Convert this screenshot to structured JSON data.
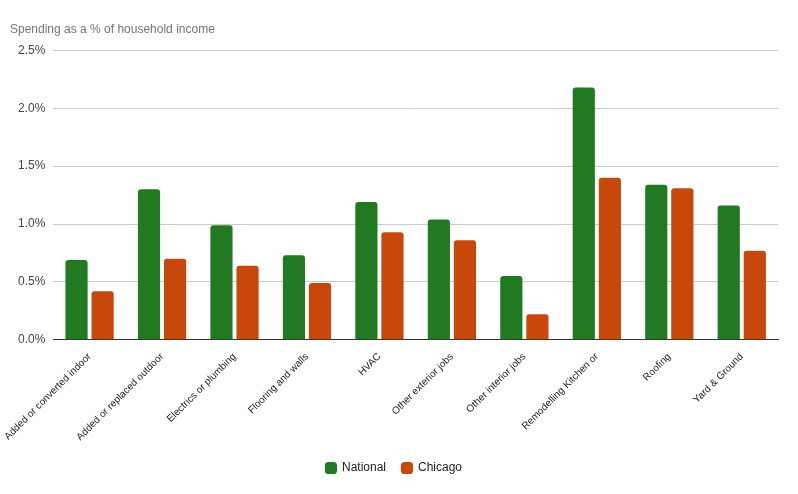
{
  "chart_data": {
    "type": "bar",
    "title": "Spending as a % of household income",
    "categories": [
      "Added or converted indoor",
      "Added or replaced outdoor",
      "Electrics or plumbing",
      "Flooring and walls",
      "HVAC",
      "Other exterior jobs",
      "Other interior jobs",
      "Remodelling Kitchen or",
      "Roofing",
      "Yard & Ground"
    ],
    "series": [
      {
        "name": "National",
        "color": "#217a21",
        "values": [
          0.69,
          1.3,
          0.99,
          0.73,
          1.19,
          1.04,
          0.55,
          2.18,
          1.34,
          1.16
        ]
      },
      {
        "name": "Chicago",
        "color": "#c8470b",
        "values": [
          0.42,
          0.7,
          0.64,
          0.49,
          0.93,
          0.86,
          0.22,
          1.4,
          1.31,
          0.77
        ]
      }
    ],
    "ylim": [
      0,
      2.5
    ],
    "yticks": [
      {
        "value": 0,
        "label": "0.0%"
      },
      {
        "value": 0.5,
        "label": "0.5%"
      },
      {
        "value": 1,
        "label": "1.0%"
      },
      {
        "value": 1.5,
        "label": "1.5%"
      },
      {
        "value": 2,
        "label": "2.0%"
      },
      {
        "value": 2.5,
        "label": "2.5%"
      }
    ],
    "grid": true,
    "legend": "bottom"
  }
}
